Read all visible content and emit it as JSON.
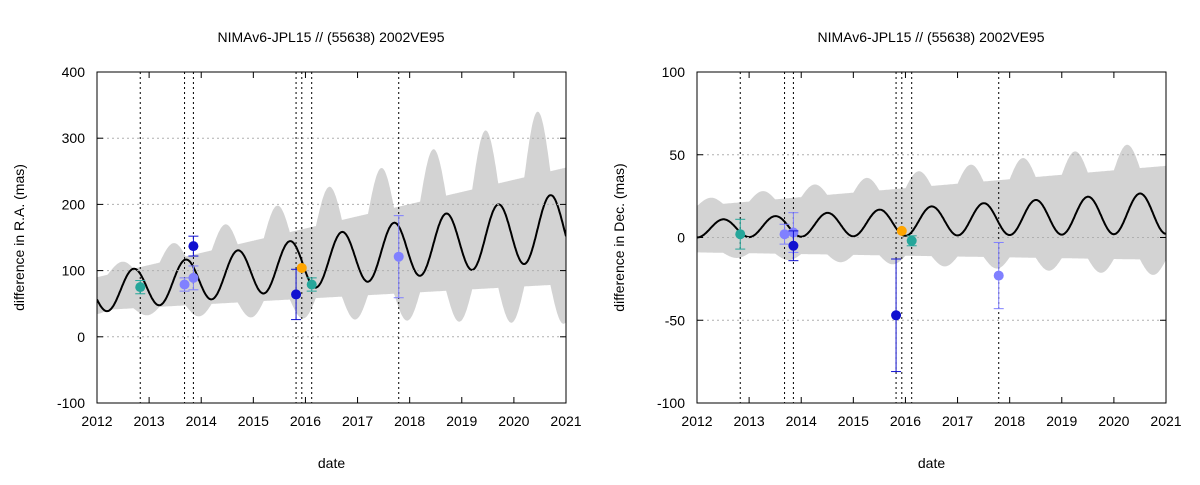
{
  "chart_data": [
    {
      "type": "scatter",
      "title": "NIMAv6-JPL15 // (55638) 2002VE95",
      "xlabel": "date",
      "ylabel": "difference in R.A. (mas)",
      "xlim": [
        2012,
        2021
      ],
      "ylim": [
        -100,
        400
      ],
      "xticks": [
        2012,
        2013,
        2014,
        2015,
        2016,
        2017,
        2018,
        2019,
        2020,
        2021
      ],
      "yticks": [
        -100,
        0,
        100,
        200,
        300,
        400
      ],
      "grid": true,
      "vertical_lines": [
        2012.83,
        2013.68,
        2013.85,
        2015.82,
        2015.93,
        2016.12,
        2017.79
      ],
      "curve": {
        "name": "model difference",
        "mean_start": 65,
        "mean_slope": 11.4,
        "amp_start": 28,
        "amp_slope": 2.5,
        "period": 1.0,
        "phase": 0.55
      },
      "band": {
        "name": "uncertainty",
        "half_width_start": 25,
        "half_width_slope": 7,
        "wiggle_start": 10,
        "wiggle_slope": 10
      },
      "series": [
        {
          "name": "teal",
          "color": "#26a69a",
          "points": [
            {
              "x": 2012.83,
              "y": 75,
              "err": 10
            },
            {
              "x": 2016.12,
              "y": 79,
              "err": 10
            }
          ]
        },
        {
          "name": "lavender",
          "color": "#8080ff",
          "points": [
            {
              "x": 2013.68,
              "y": 79,
              "err": 10
            },
            {
              "x": 2013.85,
              "y": 89,
              "err": 18
            },
            {
              "x": 2017.79,
              "y": 121,
              "err": 62
            }
          ]
        },
        {
          "name": "blue",
          "color": "#1010d0",
          "points": [
            {
              "x": 2013.85,
              "y": 137,
              "err": 15
            },
            {
              "x": 2015.82,
              "y": 64,
              "err": 38
            }
          ]
        },
        {
          "name": "orange",
          "color": "#ffa500",
          "points": [
            {
              "x": 2015.93,
              "y": 104,
              "err": 0
            }
          ]
        }
      ]
    },
    {
      "type": "scatter",
      "title": "NIMAv6-JPL15 // (55638) 2002VE95",
      "xlabel": "date",
      "ylabel": "difference in Dec. (mas)",
      "xlim": [
        2012,
        2021
      ],
      "ylim": [
        -100,
        100
      ],
      "xticks": [
        2012,
        2013,
        2014,
        2015,
        2016,
        2017,
        2018,
        2019,
        2020,
        2021
      ],
      "yticks": [
        -100,
        -50,
        0,
        50,
        100
      ],
      "grid": true,
      "vertical_lines": [
        2012.83,
        2013.68,
        2013.85,
        2015.82,
        2015.93,
        2016.12,
        2017.79
      ],
      "curve": {
        "name": "model difference",
        "mean_start": 5,
        "mean_slope": 1.1,
        "amp_start": 5,
        "amp_slope": 0.85,
        "period": 1.0,
        "phase": 0.75
      },
      "band": {
        "name": "uncertainty",
        "half_width_start": 14,
        "half_width_slope": 1.6,
        "wiggle_start": 4,
        "wiggle_slope": 1.3
      },
      "series": [
        {
          "name": "teal",
          "color": "#26a69a",
          "points": [
            {
              "x": 2012.83,
              "y": 2,
              "err": 9
            },
            {
              "x": 2016.12,
              "y": -2,
              "err": 3
            }
          ]
        },
        {
          "name": "lavender",
          "color": "#8080ff",
          "points": [
            {
              "x": 2013.68,
              "y": 2,
              "err": 6
            },
            {
              "x": 2013.85,
              "y": 3,
              "err": 12
            },
            {
              "x": 2017.79,
              "y": -23,
              "err": 20
            }
          ]
        },
        {
          "name": "blue",
          "color": "#1010d0",
          "points": [
            {
              "x": 2013.85,
              "y": -5,
              "err": 9
            },
            {
              "x": 2015.82,
              "y": -47,
              "err": 34
            }
          ]
        },
        {
          "name": "orange",
          "color": "#ffa500",
          "points": [
            {
              "x": 2015.93,
              "y": 4,
              "err": 0
            }
          ]
        }
      ]
    }
  ]
}
